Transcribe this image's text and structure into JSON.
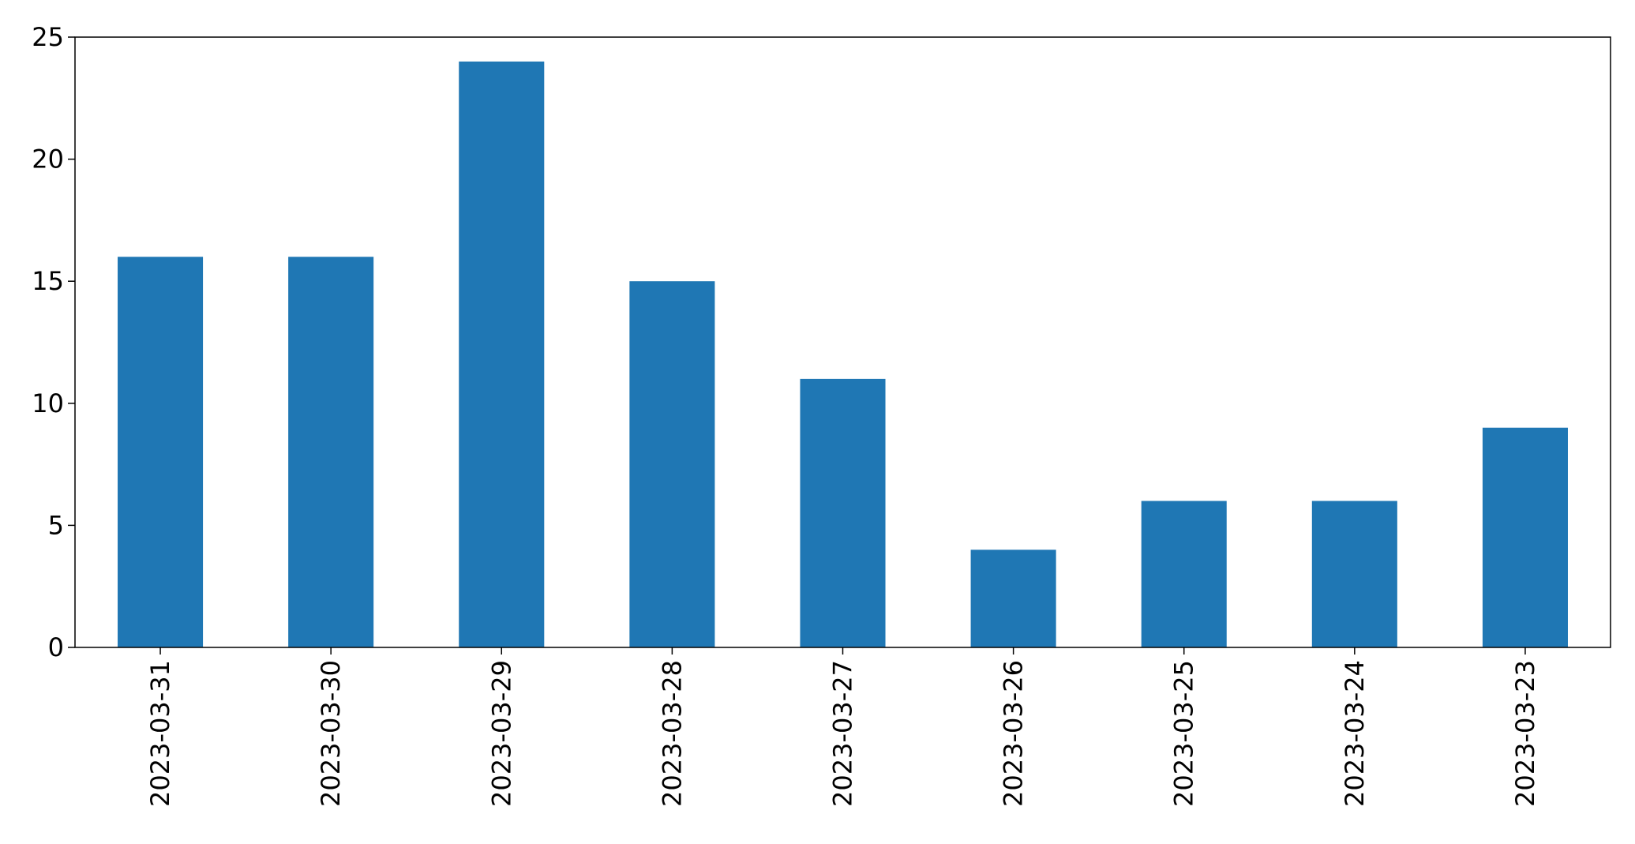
{
  "chart_data": {
    "type": "bar",
    "title": "",
    "xlabel": "",
    "ylabel": "",
    "categories": [
      "2023-03-31",
      "2023-03-30",
      "2023-03-29",
      "2023-03-28",
      "2023-03-27",
      "2023-03-26",
      "2023-03-25",
      "2023-03-24",
      "2023-03-23"
    ],
    "values": [
      16,
      16,
      24,
      15,
      11,
      4,
      6,
      6,
      9
    ],
    "ylim": [
      0,
      25
    ],
    "yticks": [
      0,
      5,
      10,
      15,
      20,
      25
    ],
    "ytick_labels": [
      "0",
      "5",
      "10",
      "15",
      "20",
      "25"
    ],
    "grid": false,
    "legend": "none",
    "bar_color": "#1f77b4",
    "x_tick_rotation": "vertical"
  }
}
